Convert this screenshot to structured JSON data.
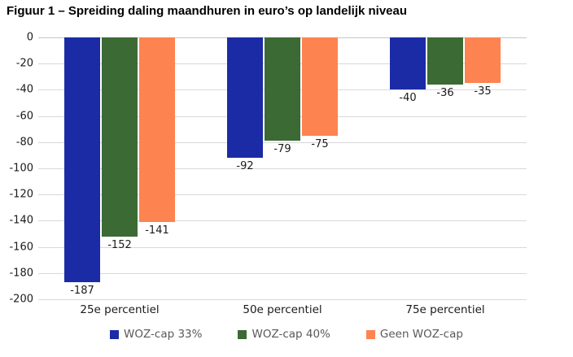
{
  "title": "Figuur 1 – Spreiding daling maandhuren in euro’s op landelijk niveau",
  "chart_data": {
    "type": "bar",
    "title": "Figuur 1 – Spreiding daling maandhuren in euro’s op landelijk niveau",
    "categories": [
      "25e percentiel",
      "50e percentiel",
      "75e percentiel"
    ],
    "series": [
      {
        "name": "WOZ-cap 33%",
        "color": "#1B2BA6",
        "values": [
          -187,
          -92,
          -40
        ]
      },
      {
        "name": "WOZ-cap 40%",
        "color": "#3B6A35",
        "values": [
          -152,
          -79,
          -36
        ]
      },
      {
        "name": "Geen WOZ-cap",
        "color": "#FD8350",
        "values": [
          -141,
          -75,
          -35
        ]
      }
    ],
    "ylim": [
      -200,
      0
    ],
    "ytick_step": 20,
    "yticklabels": [
      "0",
      "-20",
      "-40",
      "-60",
      "-80",
      "-100",
      "-120",
      "-140",
      "-160",
      "-180",
      "-200"
    ],
    "xlabel": "",
    "ylabel": "",
    "grid": true,
    "data_labels": true,
    "legend_position": "bottom"
  },
  "style": {
    "gridline_color": "#D9D9D9",
    "zero_line_color": "#C6C6C6",
    "label_color": "#1A1A1A",
    "legend_text_color": "#595959",
    "background": "#FFFFFF"
  }
}
